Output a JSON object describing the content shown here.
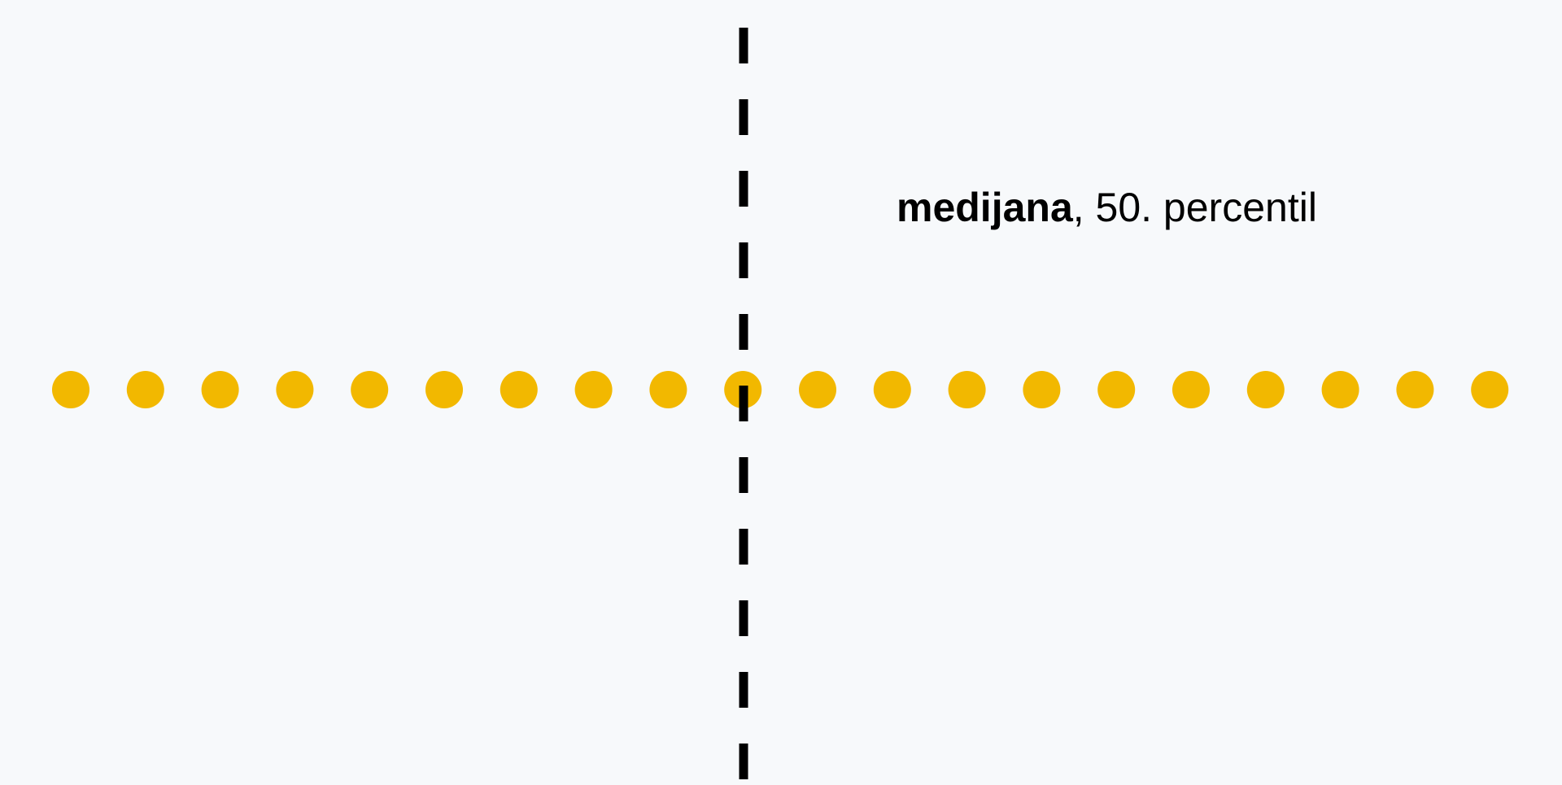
{
  "annotation": {
    "bold_term": "medijana",
    "rest": ", 50. percentil"
  },
  "dots": {
    "count": 20,
    "median_index": 9,
    "color": "#f2b800"
  },
  "colors": {
    "background": "#f7f9fb",
    "line": "#000000",
    "text": "#000000"
  }
}
